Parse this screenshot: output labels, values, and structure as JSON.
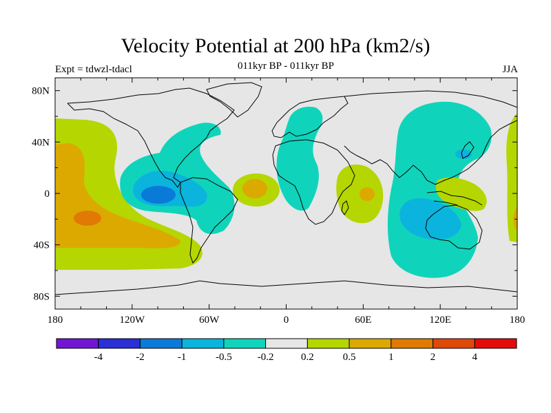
{
  "title": "Velocity Potential at 200 hPa (km2/s)",
  "subtitle": "011kyr BP - 011kyr BP",
  "left_label": "Expt = tdwzl-tdacl",
  "right_label": "JJA",
  "map": {
    "projection": "cylindrical equidistant",
    "lon_range": [
      -180,
      180
    ],
    "lat_range": [
      -90,
      90
    ],
    "x_ticks": [
      "180",
      "120W",
      "60W",
      "0",
      "60E",
      "120E",
      "180"
    ],
    "y_ticks": [
      "80N",
      "40N",
      "0",
      "40S",
      "80S"
    ]
  },
  "colorbar": {
    "colors": [
      "#7316d4",
      "#2b2fd6",
      "#0a7ad8",
      "#0bb4dc",
      "#0fd4bb",
      "#e6e6e6",
      "#b5d600",
      "#dca900",
      "#e07a04",
      "#e0480a",
      "#e50b0b"
    ],
    "labels": [
      "-4",
      "-2",
      "-1",
      "-0.5",
      "-0.2",
      "0.2",
      "0.5",
      "1",
      "2",
      "4"
    ]
  }
}
